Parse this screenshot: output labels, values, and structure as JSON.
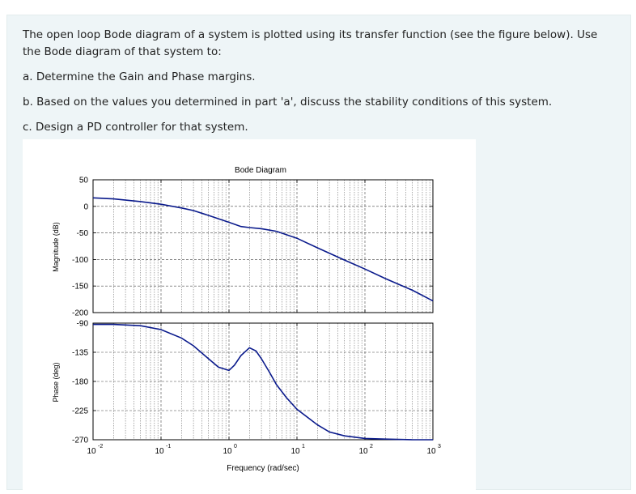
{
  "question": {
    "intro": "The open loop Bode diagram of a system is plotted using its transfer function (see the figure below). Use the Bode diagram of that system to:",
    "part_a": "a. Determine the Gain and Phase margins.",
    "part_b": "b. Based on the values you determined in part 'a', discuss the stability conditions of this system.",
    "part_c": "c. Design a PD controller for that system."
  },
  "chart_data": {
    "type": "line",
    "title": "Bode Diagram",
    "xlabel": "Frequency  (rad/sec)",
    "x_scale": "log",
    "xlim": [
      0.01,
      1000
    ],
    "x_ticks": [
      {
        "base": "10",
        "exp": "-2"
      },
      {
        "base": "10",
        "exp": "-1"
      },
      {
        "base": "10",
        "exp": "0"
      },
      {
        "base": "10",
        "exp": "1"
      },
      {
        "base": "10",
        "exp": "2"
      },
      {
        "base": "10",
        "exp": "3"
      }
    ],
    "grid": true,
    "line_color": "#0a1a8c",
    "magnitude": {
      "ylabel": "Magnitude (dB)",
      "ylim": [
        -200,
        50
      ],
      "y_ticks": [
        "50",
        "0",
        "-50",
        "-100",
        "-150",
        "-200"
      ],
      "x": [
        0.01,
        0.02,
        0.05,
        0.1,
        0.2,
        0.3,
        0.5,
        1,
        1.5,
        2,
        3,
        5,
        10,
        20,
        50,
        100,
        200,
        500,
        1000
      ],
      "y": [
        16,
        14,
        9,
        4,
        -3,
        -8,
        -17,
        -30,
        -38,
        -40,
        -42,
        -47,
        -60,
        -78,
        -101,
        -118,
        -136,
        -158,
        -178
      ]
    },
    "phase": {
      "ylabel": "Phase (deg)",
      "ylim": [
        -270,
        -90
      ],
      "y_ticks": [
        "-90",
        "-135",
        "-180",
        "-225",
        "-270"
      ],
      "x": [
        0.01,
        0.02,
        0.05,
        0.1,
        0.2,
        0.3,
        0.5,
        0.7,
        1,
        1.2,
        1.5,
        2,
        2.5,
        3,
        4,
        5,
        7,
        10,
        15,
        20,
        30,
        50,
        100,
        200,
        500,
        1000
      ],
      "y": [
        -92,
        -92,
        -94,
        -100,
        -113,
        -125,
        -145,
        -158,
        -163,
        -155,
        -140,
        -128,
        -133,
        -145,
        -167,
        -185,
        -205,
        -223,
        -237,
        -247,
        -258,
        -264,
        -268,
        -269,
        -270,
        -270
      ]
    }
  }
}
